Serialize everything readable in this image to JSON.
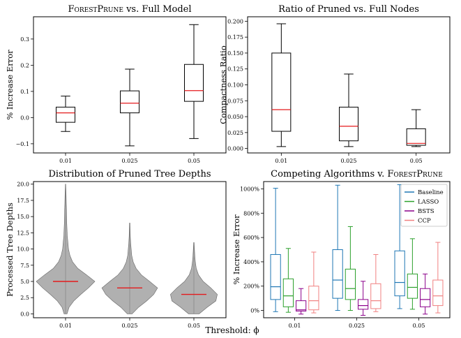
{
  "figure": {
    "xlabel": "Threshold: ϕ"
  },
  "chart_data": [
    {
      "type": "box",
      "title": "ForestPrune vs. Full Model",
      "title_parts": [
        {
          "text": "ForestPrune",
          "sc": true
        },
        {
          "text": " vs. Full Model",
          "sc": false
        }
      ],
      "xlabel": "",
      "ylabel": "% Increase Error",
      "categories": [
        "0.01",
        "0.025",
        "0.05"
      ],
      "ylim": [
        -0.135,
        0.385
      ],
      "yticks": [
        -0.1,
        0.0,
        0.1,
        0.2,
        0.3
      ],
      "ytick_labels": [
        "−0.1",
        "0.0",
        "0.1",
        "0.2",
        "0.3"
      ],
      "boxes": [
        {
          "category": "0.01",
          "whislo": -0.053,
          "q1": -0.018,
          "med": 0.018,
          "q3": 0.04,
          "whishi": 0.082
        },
        {
          "category": "0.025",
          "whislo": -0.108,
          "q1": 0.018,
          "med": 0.055,
          "q3": 0.102,
          "whishi": 0.185
        },
        {
          "category": "0.05",
          "whislo": -0.08,
          "q1": 0.062,
          "med": 0.103,
          "q3": 0.203,
          "whishi": 0.355
        }
      ],
      "box_color": "#000000",
      "median_color": "#e41a1c",
      "grid": false
    },
    {
      "type": "box",
      "title": "Ratio of Pruned vs. Full Nodes",
      "xlabel": "",
      "ylabel": "Compactness Ratio",
      "categories": [
        "0.01",
        "0.025",
        "0.05"
      ],
      "ylim": [
        -0.007,
        0.207
      ],
      "yticks": [
        0.0,
        0.025,
        0.05,
        0.075,
        0.1,
        0.125,
        0.15,
        0.175,
        0.2
      ],
      "ytick_labels": [
        "0.000",
        "0.025",
        "0.050",
        "0.075",
        "0.100",
        "0.125",
        "0.150",
        "0.175",
        "0.200"
      ],
      "boxes": [
        {
          "category": "0.01",
          "whislo": 0.003,
          "q1": 0.027,
          "med": 0.061,
          "q3": 0.15,
          "whishi": 0.196
        },
        {
          "category": "0.025",
          "whislo": 0.003,
          "q1": 0.012,
          "med": 0.035,
          "q3": 0.065,
          "whishi": 0.117
        },
        {
          "category": "0.05",
          "whislo": 0.003,
          "q1": 0.005,
          "med": 0.008,
          "q3": 0.031,
          "whishi": 0.061
        }
      ],
      "box_color": "#000000",
      "median_color": "#e41a1c",
      "grid": false
    },
    {
      "type": "violin",
      "title": "Distribution of Pruned Tree Depths",
      "xlabel": "",
      "ylabel": "Processed Tree Depths",
      "categories": [
        "0.01",
        "0.025",
        "0.05"
      ],
      "ylim": [
        -0.6,
        20.4
      ],
      "yticks": [
        0,
        2.5,
        5,
        7.5,
        10,
        12.5,
        15,
        17.5,
        20
      ],
      "ytick_labels": [
        "0.0",
        "2.5",
        "5.0",
        "7.5",
        "10.0",
        "12.5",
        "15.0",
        "17.5",
        "20.0"
      ],
      "violins": [
        {
          "category": "0.01",
          "min": 0,
          "max": 20,
          "median": 5,
          "profile": [
            [
              0,
              0.05
            ],
            [
              1,
              0.12
            ],
            [
              2,
              0.28
            ],
            [
              3,
              0.52
            ],
            [
              4,
              0.78
            ],
            [
              5,
              1.0
            ],
            [
              6,
              0.72
            ],
            [
              7,
              0.42
            ],
            [
              8,
              0.24
            ],
            [
              9,
              0.15
            ],
            [
              10,
              0.1
            ],
            [
              11,
              0.08
            ],
            [
              12,
              0.06
            ],
            [
              13,
              0.05
            ],
            [
              14,
              0.04
            ],
            [
              15,
              0.035
            ],
            [
              16,
              0.03
            ],
            [
              17,
              0.025
            ],
            [
              18,
              0.02
            ],
            [
              19,
              0.015
            ],
            [
              20,
              0.008
            ]
          ]
        },
        {
          "category": "0.025",
          "min": 0,
          "max": 14,
          "median": 4,
          "profile": [
            [
              0,
              0.08
            ],
            [
              1,
              0.3
            ],
            [
              2,
              0.58
            ],
            [
              3,
              0.82
            ],
            [
              4,
              0.95
            ],
            [
              5,
              0.68
            ],
            [
              6,
              0.4
            ],
            [
              7,
              0.22
            ],
            [
              8,
              0.12
            ],
            [
              9,
              0.07
            ],
            [
              10,
              0.05
            ],
            [
              11,
              0.03
            ],
            [
              12,
              0.02
            ],
            [
              13,
              0.015
            ],
            [
              14,
              0.01
            ]
          ]
        },
        {
          "category": "0.05",
          "min": 0,
          "max": 11,
          "median": 3,
          "profile": [
            [
              0,
              0.18
            ],
            [
              1,
              0.45
            ],
            [
              2,
              0.75
            ],
            [
              3,
              0.8
            ],
            [
              4,
              0.58
            ],
            [
              5,
              0.32
            ],
            [
              6,
              0.16
            ],
            [
              7,
              0.08
            ],
            [
              8,
              0.05
            ],
            [
              9,
              0.03
            ],
            [
              10,
              0.02
            ],
            [
              11,
              0.01
            ]
          ]
        }
      ],
      "fill_color": "#b0b0b0",
      "median_color": "#e41a1c",
      "grid": false
    },
    {
      "type": "box",
      "title": "Competing Algorithms v. ForestPrune",
      "title_parts": [
        {
          "text": "Competing Algorithms v. ",
          "sc": false
        },
        {
          "text": "ForestPrune",
          "sc": true
        }
      ],
      "xlabel": "",
      "ylabel": "% Increase Error",
      "categories": [
        "0.01",
        "0.025",
        "0.05"
      ],
      "ylim": [
        -0.6,
        10.6
      ],
      "yticks": [
        0,
        2,
        4,
        6,
        8,
        10
      ],
      "ytick_labels": [
        "0%",
        "200%",
        "400%",
        "600%",
        "800%",
        "1000%"
      ],
      "legend": {
        "position": "upper right",
        "entries": [
          "Baseline",
          "LASSO",
          "BSTS",
          "CCP"
        ]
      },
      "series": [
        {
          "name": "Baseline",
          "color": "#1f77b4",
          "boxes": [
            {
              "whislo": -0.1,
              "q1": 0.9,
              "med": 1.95,
              "q3": 4.6,
              "whishi": 10.05
            },
            {
              "whislo": 0.0,
              "q1": 1.0,
              "med": 2.5,
              "q3": 5.0,
              "whishi": 10.3
            },
            {
              "whislo": 0.15,
              "q1": 1.2,
              "med": 2.3,
              "q3": 4.9,
              "whishi": 10.35
            }
          ]
        },
        {
          "name": "LASSO",
          "color": "#2ca02c",
          "boxes": [
            {
              "whislo": -0.15,
              "q1": 0.3,
              "med": 1.2,
              "q3": 2.6,
              "whishi": 5.1
            },
            {
              "whislo": 0.0,
              "q1": 0.9,
              "med": 1.8,
              "q3": 3.4,
              "whishi": 6.9
            },
            {
              "whislo": 0.1,
              "q1": 1.0,
              "med": 1.9,
              "q3": 3.0,
              "whishi": 5.9
            }
          ]
        },
        {
          "name": "BSTS",
          "color": "#8b008b",
          "boxes": [
            {
              "whislo": -0.3,
              "q1": -0.05,
              "med": 0.05,
              "q3": 0.8,
              "whishi": 1.8
            },
            {
              "whislo": -0.4,
              "q1": 0.1,
              "med": 0.4,
              "q3": 0.9,
              "whishi": 2.4
            },
            {
              "whislo": -0.3,
              "q1": 0.3,
              "med": 0.9,
              "q3": 1.8,
              "whishi": 3.0
            }
          ]
        },
        {
          "name": "CCP",
          "color": "#f08080",
          "boxes": [
            {
              "whislo": -0.2,
              "q1": 0.05,
              "med": 0.8,
              "q3": 2.0,
              "whishi": 4.8
            },
            {
              "whislo": -0.1,
              "q1": 0.15,
              "med": 0.8,
              "q3": 2.2,
              "whishi": 4.6
            },
            {
              "whislo": -0.2,
              "q1": 0.4,
              "med": 1.2,
              "q3": 2.5,
              "whishi": 5.6
            }
          ]
        }
      ],
      "grid": false
    }
  ]
}
